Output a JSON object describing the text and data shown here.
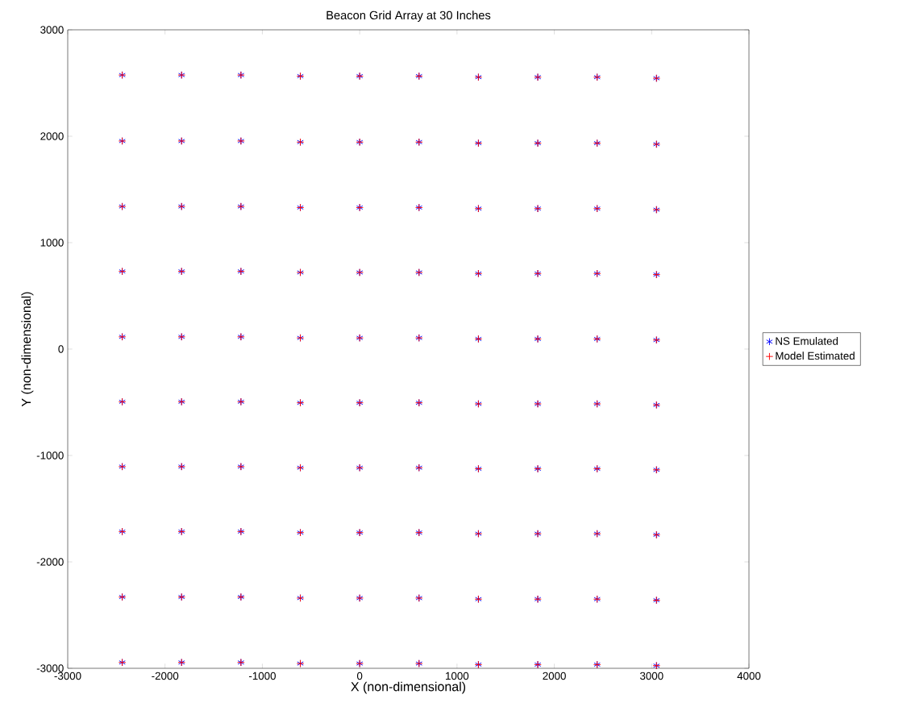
{
  "chart_data": {
    "type": "scatter",
    "title": "Beacon Grid Array at 30 Inches",
    "xlabel": "X (non-dimensional)",
    "ylabel": "Y (non-dimensional)",
    "xlim": [
      -3000,
      4000
    ],
    "ylim": [
      -3000,
      3000
    ],
    "xticks": [
      -3000,
      -2000,
      -1000,
      0,
      1000,
      2000,
      3000,
      4000
    ],
    "yticks": [
      -3000,
      -2000,
      -1000,
      0,
      1000,
      2000,
      3000
    ],
    "legend": "right",
    "x": [
      -2440,
      -1830,
      -1220,
      -610,
      0,
      610,
      1220,
      1830,
      2440,
      3050,
      -2440,
      -1830,
      -1220,
      -610,
      0,
      610,
      1220,
      1830,
      2440,
      3050,
      -2440,
      -1830,
      -1220,
      -610,
      0,
      610,
      1220,
      1830,
      2440,
      3050,
      -2440,
      -1830,
      -1220,
      -610,
      0,
      610,
      1220,
      1830,
      2440,
      3050,
      -2440,
      -1830,
      -1220,
      -610,
      0,
      610,
      1220,
      1830,
      2440,
      3050,
      -2440,
      -1830,
      -1220,
      -610,
      0,
      610,
      1220,
      1830,
      2440,
      3050,
      -2440,
      -1830,
      -1220,
      -610,
      0,
      610,
      1220,
      1830,
      2440,
      3050,
      -2440,
      -1830,
      -1220,
      -610,
      0,
      610,
      1220,
      1830,
      2440,
      3050,
      -2440,
      -1830,
      -1220,
      -610,
      0,
      610,
      1220,
      1830,
      2440,
      3050,
      -2440,
      -1830,
      -1220,
      -610,
      0,
      610,
      1220,
      1830,
      2440,
      3050
    ],
    "series": [
      {
        "name": "NS Emulated",
        "color": "#0000ff",
        "values": [
          2575,
          2575,
          2575,
          2565,
          2565,
          2565,
          2555,
          2555,
          2555,
          2545,
          1955,
          1955,
          1955,
          1945,
          1945,
          1945,
          1935,
          1935,
          1935,
          1925,
          1340,
          1340,
          1340,
          1330,
          1330,
          1330,
          1320,
          1320,
          1320,
          1310,
          730,
          730,
          730,
          720,
          720,
          720,
          710,
          710,
          710,
          700,
          115,
          115,
          115,
          105,
          105,
          105,
          95,
          95,
          95,
          85,
          -495,
          -495,
          -495,
          -505,
          -505,
          -505,
          -515,
          -515,
          -515,
          -525,
          -1105,
          -1105,
          -1105,
          -1115,
          -1115,
          -1115,
          -1125,
          -1125,
          -1125,
          -1135,
          -1715,
          -1715,
          -1715,
          -1725,
          -1725,
          -1725,
          -1735,
          -1735,
          -1735,
          -1745,
          -2330,
          -2330,
          -2330,
          -2340,
          -2340,
          -2340,
          -2350,
          -2350,
          -2350,
          -2360,
          -2945,
          -2945,
          -2945,
          -2955,
          -2955,
          -2955,
          -2965,
          -2965,
          -2965,
          -2975
        ]
      },
      {
        "name": "Model Estimated",
        "color": "#ff0000",
        "marker": "cross",
        "values": [
          2575,
          2575,
          2575,
          2565,
          2565,
          2565,
          2555,
          2555,
          2555,
          2545,
          1955,
          1955,
          1955,
          1945,
          1945,
          1945,
          1935,
          1935,
          1935,
          1925,
          1340,
          1340,
          1340,
          1330,
          1330,
          1330,
          1320,
          1320,
          1320,
          1310,
          730,
          730,
          730,
          720,
          720,
          720,
          710,
          710,
          710,
          700,
          115,
          115,
          115,
          105,
          105,
          105,
          95,
          95,
          95,
          85,
          -495,
          -495,
          -495,
          -505,
          -505,
          -505,
          -515,
          -515,
          -515,
          -525,
          -1105,
          -1105,
          -1105,
          -1115,
          -1115,
          -1115,
          -1125,
          -1125,
          -1125,
          -1135,
          -1715,
          -1715,
          -1715,
          -1725,
          -1725,
          -1725,
          -1735,
          -1735,
          -1735,
          -1745,
          -2330,
          -2330,
          -2330,
          -2340,
          -2340,
          -2340,
          -2350,
          -2350,
          -2350,
          -2360,
          -2945,
          -2945,
          -2945,
          -2955,
          -2955,
          -2955,
          -2965,
          -2965,
          -2965,
          -2975
        ]
      }
    ]
  }
}
